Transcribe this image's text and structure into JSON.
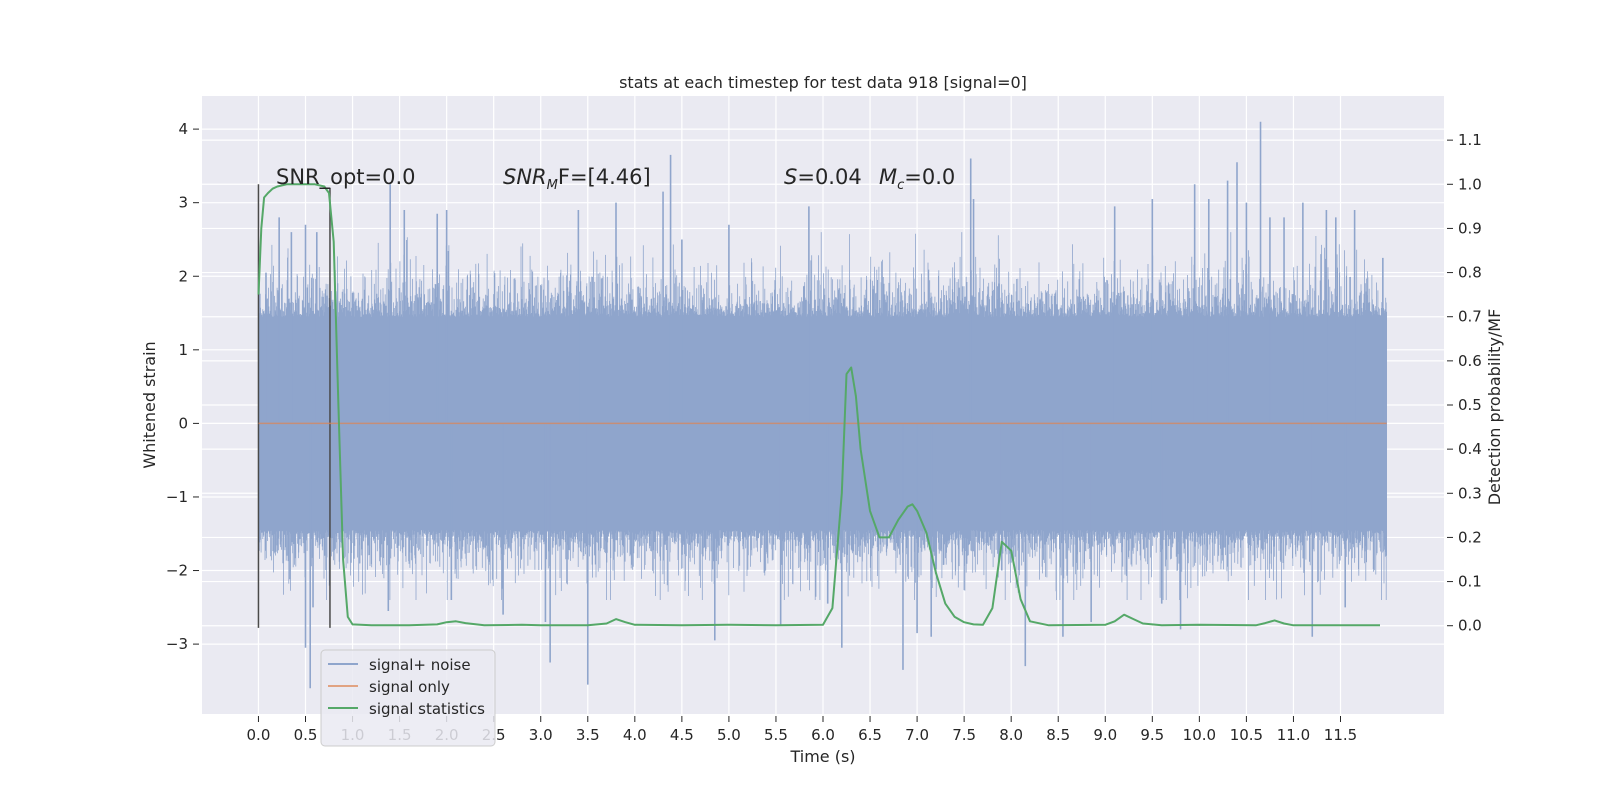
{
  "chart_data": {
    "type": "line",
    "title": "stats at each timestep for test data 918 [signal=0]",
    "xlabel": "Time (s)",
    "ylabel": "Whitened strain",
    "ylabel_right": "Detection probability/MF",
    "xlim": [
      -0.6,
      12.6
    ],
    "ylim": [
      -3.95,
      4.45
    ],
    "ylim_right": [
      -0.2,
      1.2
    ],
    "grid": true,
    "legend_position": "lower-left",
    "x_ticks": [
      0.0,
      0.5,
      1.0,
      1.5,
      2.0,
      2.5,
      3.0,
      3.5,
      4.0,
      4.5,
      5.0,
      5.5,
      6.0,
      6.5,
      7.0,
      7.5,
      8.0,
      8.5,
      9.0,
      9.5,
      10.0,
      10.5,
      11.0,
      11.5
    ],
    "x_tick_labels": [
      "0.0",
      "0.5",
      "1.0",
      "1.5",
      "2.0",
      "2.5",
      "3.0",
      "3.5",
      "4.0",
      "4.5",
      "5.0",
      "5.5",
      "6.0",
      "6.5",
      "7.0",
      "7.5",
      "8.0",
      "8.5",
      "9.0",
      "9.5",
      "10.0",
      "10.5",
      "11.0",
      "11.5"
    ],
    "y_ticks": [
      -3,
      -2,
      -1,
      0,
      1,
      2,
      3,
      4
    ],
    "y_tick_labels": [
      "−3",
      "−2",
      "−1",
      "0",
      "1",
      "2",
      "3",
      "4"
    ],
    "y_right_ticks": [
      0.0,
      0.1,
      0.2,
      0.3,
      0.4,
      0.5,
      0.6,
      0.7,
      0.8,
      0.9,
      1.0,
      1.1
    ],
    "y_right_tick_labels": [
      "0.0",
      "0.1",
      "0.2",
      "0.3",
      "0.4",
      "0.5",
      "0.6",
      "0.7",
      "0.8",
      "0.9",
      "1.0",
      "1.1"
    ],
    "annotations": {
      "snr_opt": "SNR_opt=0.0",
      "snr_mf_label": "SNR",
      "snr_mf_sub": "M",
      "snr_mf_value": "F=[4.46]",
      "s_label": "S",
      "s_value": "=0.04",
      "mc_label": "M",
      "mc_sub": "c",
      "mc_value": "=0.0"
    },
    "markers": [
      {
        "x": 0.0,
        "y_range": [
          -2.78,
          3.25
        ]
      },
      {
        "x": 0.76,
        "y_range": [
          -2.78,
          3.2
        ]
      }
    ],
    "series": [
      {
        "name": "signal+ noise",
        "color": "#8fa5cc",
        "axis": "left",
        "x_range": [
          0.0,
          11.99
        ],
        "envelope_amplitude": 1.45,
        "points": [
          [
            0.08,
            2.05
          ],
          [
            0.22,
            2.8
          ],
          [
            0.35,
            2.6
          ],
          [
            0.5,
            -3.05
          ],
          [
            0.5,
            2.7
          ],
          [
            0.55,
            -3.6
          ],
          [
            0.58,
            -2.5
          ],
          [
            0.62,
            2.6
          ],
          [
            1.38,
            -2.55
          ],
          [
            1.4,
            3.25
          ],
          [
            1.55,
            2.9
          ],
          [
            1.9,
            2.85
          ],
          [
            2.0,
            2.9
          ],
          [
            2.05,
            -2.4
          ],
          [
            2.6,
            -2.6
          ],
          [
            3.05,
            -2.7
          ],
          [
            3.1,
            -3.25
          ],
          [
            3.4,
            2.9
          ],
          [
            3.5,
            -3.55
          ],
          [
            3.8,
            3.0
          ],
          [
            4.3,
            3.15
          ],
          [
            4.38,
            3.65
          ],
          [
            4.5,
            2.5
          ],
          [
            4.85,
            -2.95
          ],
          [
            5.0,
            2.7
          ],
          [
            5.55,
            -2.75
          ],
          [
            5.85,
            2.95
          ],
          [
            6.05,
            -2.45
          ],
          [
            6.2,
            -3.05
          ],
          [
            6.85,
            -3.35
          ],
          [
            7.0,
            -2.85
          ],
          [
            7.15,
            -2.9
          ],
          [
            7.57,
            3.6
          ],
          [
            7.6,
            3.05
          ],
          [
            7.9,
            -2.0
          ],
          [
            8.15,
            -3.3
          ],
          [
            8.55,
            -2.9
          ],
          [
            8.85,
            -2.7
          ],
          [
            9.1,
            2.95
          ],
          [
            9.5,
            3.05
          ],
          [
            9.6,
            -2.45
          ],
          [
            9.8,
            -2.8
          ],
          [
            9.95,
            3.25
          ],
          [
            10.1,
            3.05
          ],
          [
            10.3,
            3.3
          ],
          [
            10.4,
            3.55
          ],
          [
            10.5,
            3.0
          ],
          [
            10.65,
            4.1
          ],
          [
            10.75,
            2.8
          ],
          [
            10.9,
            2.8
          ],
          [
            11.1,
            3.0
          ],
          [
            11.2,
            -2.9
          ],
          [
            11.35,
            2.9
          ],
          [
            11.45,
            2.8
          ],
          [
            11.55,
            -2.5
          ],
          [
            11.65,
            2.9
          ],
          [
            11.95,
            2.25
          ]
        ]
      },
      {
        "name": "signal only",
        "color": "#dd8452",
        "axis": "left",
        "points": [
          [
            0.0,
            0.0
          ],
          [
            11.99,
            0.0
          ]
        ]
      },
      {
        "name": "signal statistics",
        "color": "#55a868",
        "axis": "right",
        "points": [
          [
            0.0,
            0.75
          ],
          [
            0.03,
            0.9
          ],
          [
            0.06,
            0.97
          ],
          [
            0.1,
            0.98
          ],
          [
            0.15,
            0.99
          ],
          [
            0.2,
            0.995
          ],
          [
            0.3,
            1.0
          ],
          [
            0.45,
            1.0
          ],
          [
            0.6,
            1.0
          ],
          [
            0.7,
            0.995
          ],
          [
            0.75,
            0.98
          ],
          [
            0.8,
            0.87
          ],
          [
            0.85,
            0.5
          ],
          [
            0.9,
            0.15
          ],
          [
            0.95,
            0.02
          ],
          [
            1.0,
            0.003
          ],
          [
            1.2,
            0.001
          ],
          [
            1.6,
            0.001
          ],
          [
            1.9,
            0.003
          ],
          [
            2.0,
            0.008
          ],
          [
            2.1,
            0.01
          ],
          [
            2.2,
            0.006
          ],
          [
            2.4,
            0.001
          ],
          [
            2.8,
            0.002
          ],
          [
            3.0,
            0.001
          ],
          [
            3.5,
            0.001
          ],
          [
            3.7,
            0.005
          ],
          [
            3.8,
            0.015
          ],
          [
            3.9,
            0.008
          ],
          [
            4.0,
            0.002
          ],
          [
            4.5,
            0.001
          ],
          [
            5.0,
            0.002
          ],
          [
            5.5,
            0.001
          ],
          [
            6.0,
            0.002
          ],
          [
            6.1,
            0.04
          ],
          [
            6.2,
            0.3
          ],
          [
            6.25,
            0.57
          ],
          [
            6.3,
            0.585
          ],
          [
            6.35,
            0.52
          ],
          [
            6.4,
            0.4
          ],
          [
            6.5,
            0.26
          ],
          [
            6.6,
            0.2
          ],
          [
            6.7,
            0.2
          ],
          [
            6.8,
            0.24
          ],
          [
            6.9,
            0.27
          ],
          [
            6.95,
            0.275
          ],
          [
            7.0,
            0.26
          ],
          [
            7.1,
            0.21
          ],
          [
            7.2,
            0.12
          ],
          [
            7.3,
            0.05
          ],
          [
            7.4,
            0.02
          ],
          [
            7.5,
            0.008
          ],
          [
            7.6,
            0.003
          ],
          [
            7.7,
            0.002
          ],
          [
            7.8,
            0.04
          ],
          [
            7.9,
            0.19
          ],
          [
            8.0,
            0.17
          ],
          [
            8.1,
            0.06
          ],
          [
            8.2,
            0.01
          ],
          [
            8.4,
            0.001
          ],
          [
            9.0,
            0.002
          ],
          [
            9.1,
            0.01
          ],
          [
            9.2,
            0.025
          ],
          [
            9.3,
            0.015
          ],
          [
            9.4,
            0.005
          ],
          [
            9.6,
            0.001
          ],
          [
            10.0,
            0.002
          ],
          [
            10.6,
            0.001
          ],
          [
            10.7,
            0.006
          ],
          [
            10.8,
            0.012
          ],
          [
            10.9,
            0.005
          ],
          [
            11.0,
            0.001
          ],
          [
            11.92,
            0.001
          ]
        ]
      }
    ]
  }
}
